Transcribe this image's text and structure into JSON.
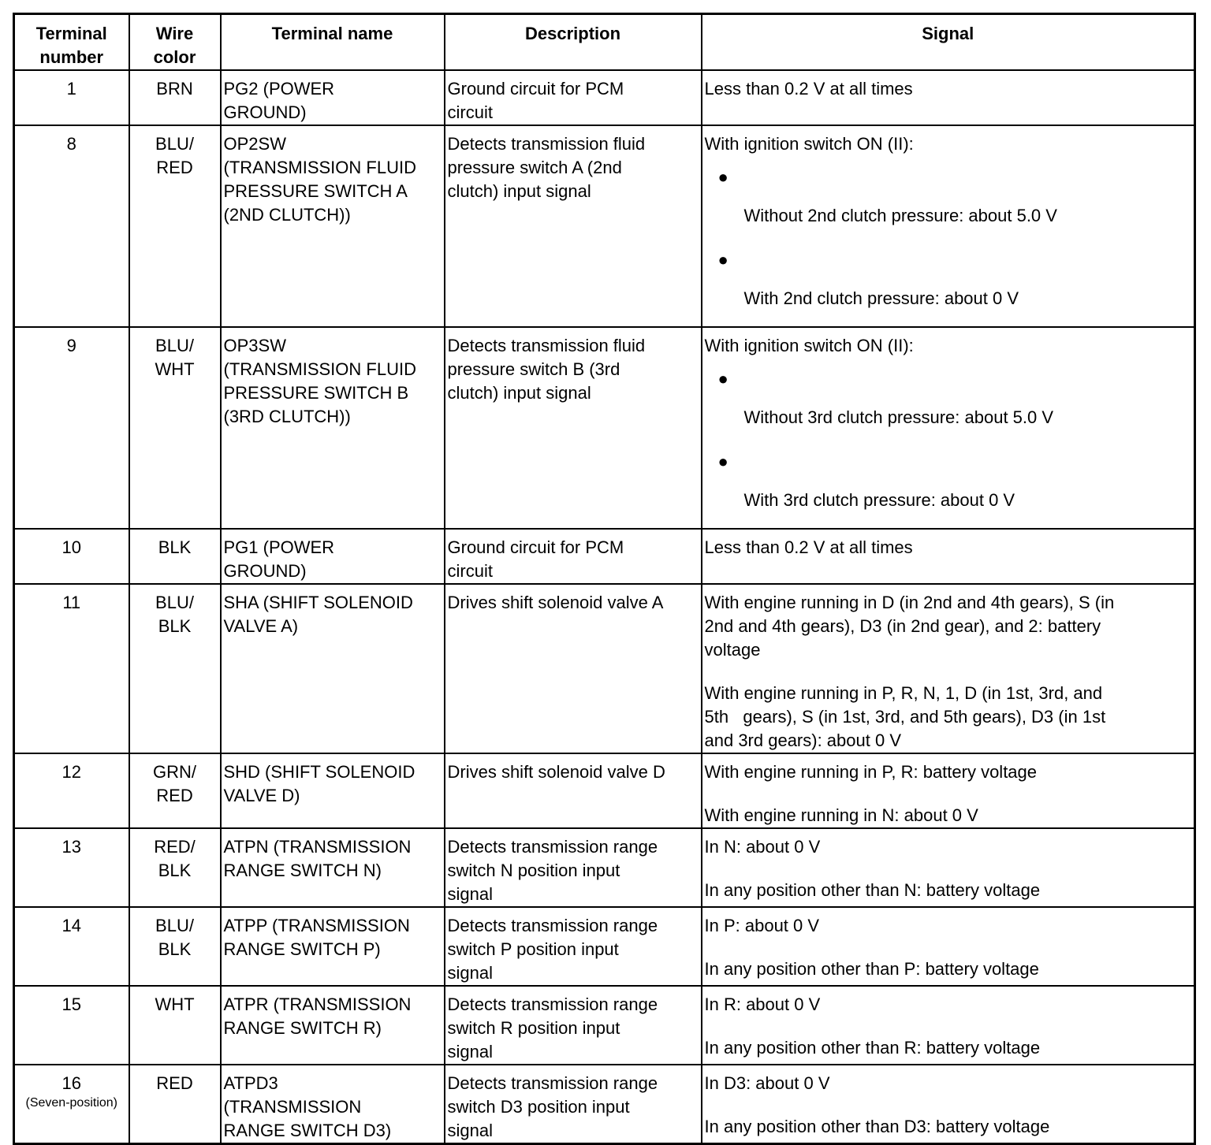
{
  "headers": [
    "Terminal\nnumber",
    "Wire\ncolor",
    "Terminal name",
    "Description",
    "Signal"
  ],
  "rows": [
    {
      "terminal": "1",
      "wire": "BRN",
      "name": "PG2 (POWER\nGROUND)",
      "description": "Ground circuit for PCM\ncircuit",
      "signal": {
        "paragraphs": [
          "Less than 0.2 V at all times"
        ]
      }
    },
    {
      "terminal": "8",
      "wire": "BLU/\nRED",
      "name": "OP2SW\n(TRANSMISSION FLUID\nPRESSURE SWITCH A\n(2ND CLUTCH))",
      "description": "Detects transmission fluid\npressure switch A (2nd\nclutch) input signal",
      "signal": {
        "intro": "With ignition switch ON (II):",
        "bullets": [
          "Without 2nd clutch pressure: about 5.0 V",
          "With 2nd clutch pressure: about 0 V"
        ]
      }
    },
    {
      "terminal": "9",
      "wire": "BLU/\nWHT",
      "name": "OP3SW\n(TRANSMISSION FLUID\nPRESSURE SWITCH B\n(3RD CLUTCH))",
      "description": "Detects transmission fluid\npressure switch B (3rd\nclutch) input signal",
      "signal": {
        "intro": "With ignition switch ON (II):",
        "bullets": [
          "Without 3rd clutch pressure: about 5.0 V",
          "With 3rd clutch pressure: about 0 V"
        ]
      }
    },
    {
      "terminal": "10",
      "wire": "BLK",
      "name": "PG1 (POWER\nGROUND)",
      "description": "Ground circuit for PCM\ncircuit",
      "signal": {
        "paragraphs": [
          "Less than 0.2 V at all times"
        ]
      }
    },
    {
      "terminal": "11",
      "wire": "BLU/\nBLK",
      "name": "SHA (SHIFT SOLENOID\nVALVE A)",
      "description": "Drives shift solenoid valve A",
      "signal": {
        "paragraphs": [
          "With engine running in D (in 2nd and 4th gears), S (in\n2nd and 4th gears), D3 (in 2nd gear), and 2: battery\nvoltage",
          "With engine running in P, R, N, 1, D (in 1st, 3rd, and\n5th   gears), S (in 1st, 3rd, and 5th gears), D3 (in 1st\nand 3rd gears): about 0 V"
        ]
      }
    },
    {
      "terminal": "12",
      "wire": "GRN/\nRED",
      "name": "SHD (SHIFT SOLENOID\nVALVE D)",
      "description": "Drives shift solenoid valve D",
      "signal": {
        "paragraphs": [
          "With engine running in P, R: battery voltage",
          "With engine running in N: about 0 V"
        ]
      }
    },
    {
      "terminal": "13",
      "wire": "RED/\nBLK",
      "name": "ATPN (TRANSMISSION\nRANGE SWITCH N)",
      "description": "Detects transmission range\nswitch N position input\nsignal",
      "signal": {
        "paragraphs": [
          "In N: about 0 V",
          "In any position other than N: battery voltage"
        ]
      }
    },
    {
      "terminal": "14",
      "wire": "BLU/\nBLK",
      "name": "ATPP (TRANSMISSION\nRANGE SWITCH P)",
      "description": "Detects transmission range\nswitch P position input\nsignal",
      "signal": {
        "paragraphs": [
          "In P: about 0 V",
          "In any position other than P: battery voltage"
        ]
      }
    },
    {
      "terminal": "15",
      "wire": "WHT",
      "name": "ATPR (TRANSMISSION\nRANGE SWITCH R)",
      "description": "Detects transmission range\nswitch R position input\nsignal",
      "signal": {
        "paragraphs": [
          "In R: about 0 V",
          "In any position other than R: battery voltage"
        ]
      }
    },
    {
      "terminal": "16",
      "terminal_note": "(Seven-position)",
      "wire": "RED",
      "name": "ATPD3\n(TRANSMISSION\nRANGE SWITCH D3)",
      "description": "Detects transmission range\nswitch D3 position input\nsignal",
      "signal": {
        "paragraphs": [
          "In D3: about 0 V",
          "In any position other than D3: battery voltage"
        ]
      }
    }
  ]
}
